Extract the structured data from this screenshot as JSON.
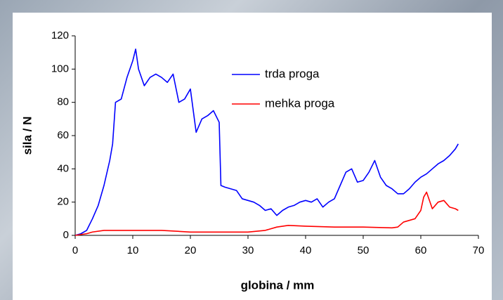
{
  "chart_data": {
    "type": "line",
    "xlabel": "globina / mm",
    "ylabel": "sila / N",
    "xlim": [
      0,
      70
    ],
    "ylim": [
      0,
      120
    ],
    "xticks": [
      0,
      10,
      20,
      30,
      40,
      50,
      60,
      70
    ],
    "yticks": [
      0,
      20,
      40,
      60,
      80,
      100,
      120
    ],
    "series": [
      {
        "name": "trda proga",
        "color": "#0000ff",
        "x": [
          0,
          1,
          2,
          3,
          4,
          5,
          6,
          6.5,
          7,
          8,
          9,
          10,
          10.5,
          11,
          12,
          13,
          14,
          15,
          16,
          17,
          18,
          19,
          20,
          21,
          22,
          23,
          24,
          25,
          25.3,
          26,
          27,
          28,
          29,
          30,
          31,
          32,
          33,
          34,
          35,
          36,
          37,
          38,
          39,
          40,
          41,
          42,
          43,
          44,
          45,
          46,
          47,
          48,
          49,
          50,
          51,
          52,
          53,
          54,
          55,
          56,
          57,
          58,
          59,
          60,
          61,
          62,
          63,
          64,
          65,
          66,
          66.5
        ],
        "values": [
          0,
          1,
          3,
          10,
          18,
          30,
          45,
          55,
          80,
          82,
          95,
          105,
          112,
          100,
          90,
          95,
          97,
          95,
          92,
          97,
          80,
          82,
          88,
          62,
          70,
          72,
          75,
          68,
          30,
          29,
          28,
          27,
          22,
          21,
          20,
          18,
          15,
          16,
          12,
          15,
          17,
          18,
          20,
          21,
          20,
          22,
          17,
          20,
          22,
          30,
          38,
          40,
          32,
          33,
          38,
          45,
          35,
          30,
          28,
          25,
          25,
          28,
          32,
          35,
          37,
          40,
          43,
          45,
          48,
          52,
          55
        ]
      },
      {
        "name": "mehka proga",
        "color": "#ff0000",
        "x": [
          0,
          2,
          3,
          5,
          10,
          15,
          20,
          25,
          30,
          33,
          35,
          37,
          40,
          45,
          50,
          55,
          56,
          57,
          58,
          59,
          60,
          60.5,
          61,
          62,
          63,
          64,
          65,
          66,
          66.5
        ],
        "values": [
          0,
          1,
          2,
          3,
          3,
          3,
          2,
          2,
          2,
          3,
          5,
          6,
          5.5,
          5,
          5,
          4.5,
          5,
          8,
          9,
          10,
          15,
          23,
          26,
          16,
          20,
          21,
          17,
          16,
          15
        ]
      }
    ]
  }
}
